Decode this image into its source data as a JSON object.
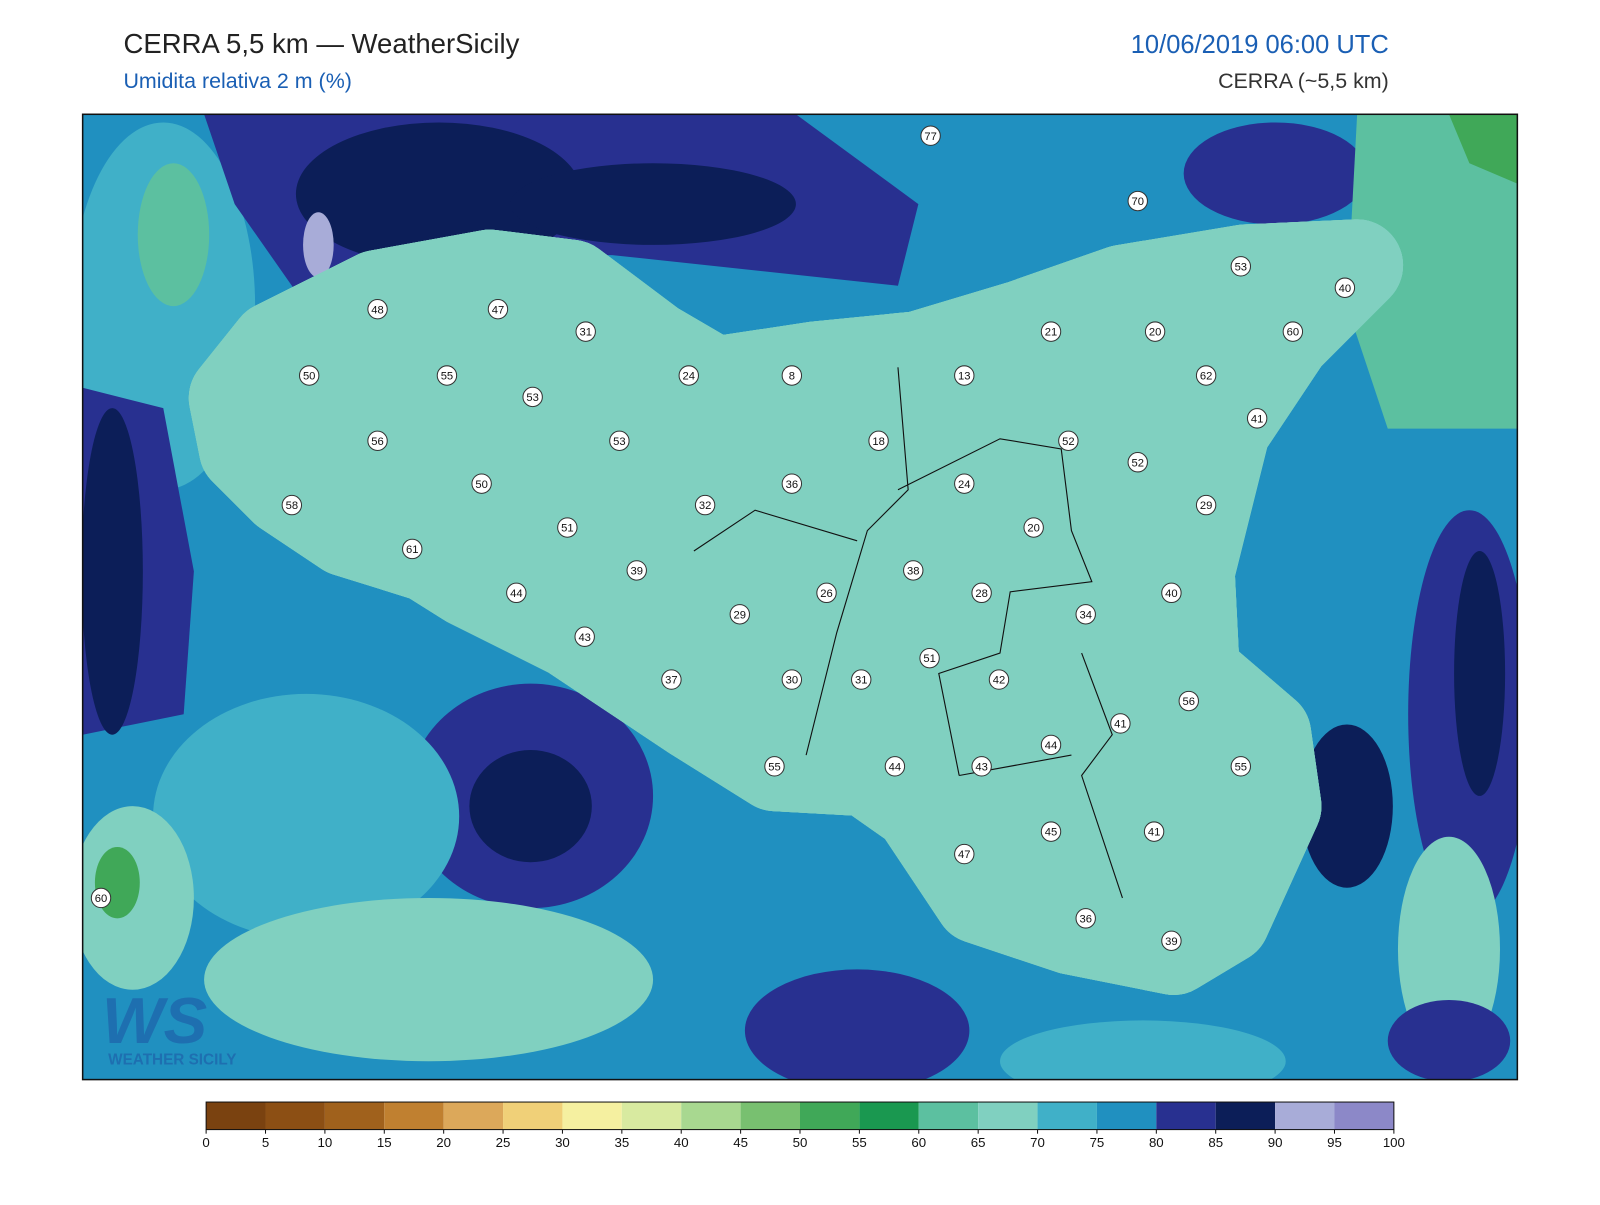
{
  "header": {
    "title": "CERRA 5,5 km — WeatherSicily",
    "subtitle": "Umidita relativa 2 m (%)",
    "datetime": "10/06/2019 06:00 UTC",
    "model": "CERRA (~5,5 km)"
  },
  "stations": [
    77,
    70,
    53,
    40,
    48,
    47,
    31,
    21,
    20,
    60,
    50,
    55,
    24,
    8,
    13,
    62,
    53,
    41,
    56,
    53,
    18,
    52,
    52,
    50,
    36,
    24,
    58,
    32,
    29,
    51,
    20,
    61,
    39,
    38,
    44,
    26,
    28,
    40,
    29,
    34,
    43,
    51,
    37,
    30,
    31,
    42,
    56,
    41,
    44,
    55,
    44,
    43,
    55,
    45,
    41,
    47,
    60,
    36,
    39
  ],
  "colorbar": {
    "ticks": [
      0,
      5,
      10,
      15,
      20,
      25,
      30,
      35,
      40,
      45,
      50,
      55,
      60,
      65,
      70,
      75,
      80,
      85,
      90,
      95,
      100
    ],
    "colors": [
      "#7a4210",
      "#8c4f14",
      "#a0611c",
      "#c08030",
      "#dca85a",
      "#f0d078",
      "#f5f0a0",
      "#d8eaa0",
      "#a8d890",
      "#78c070",
      "#40a858",
      "#1a9850",
      "#5cc0a0",
      "#80d0c0",
      "#40b0c8",
      "#2090c0",
      "#283090",
      "#0c1e58",
      "#a8acd8",
      "#8c88c8"
    ]
  },
  "logo": {
    "mark": "WS",
    "text": "WEATHER SICILY"
  }
}
